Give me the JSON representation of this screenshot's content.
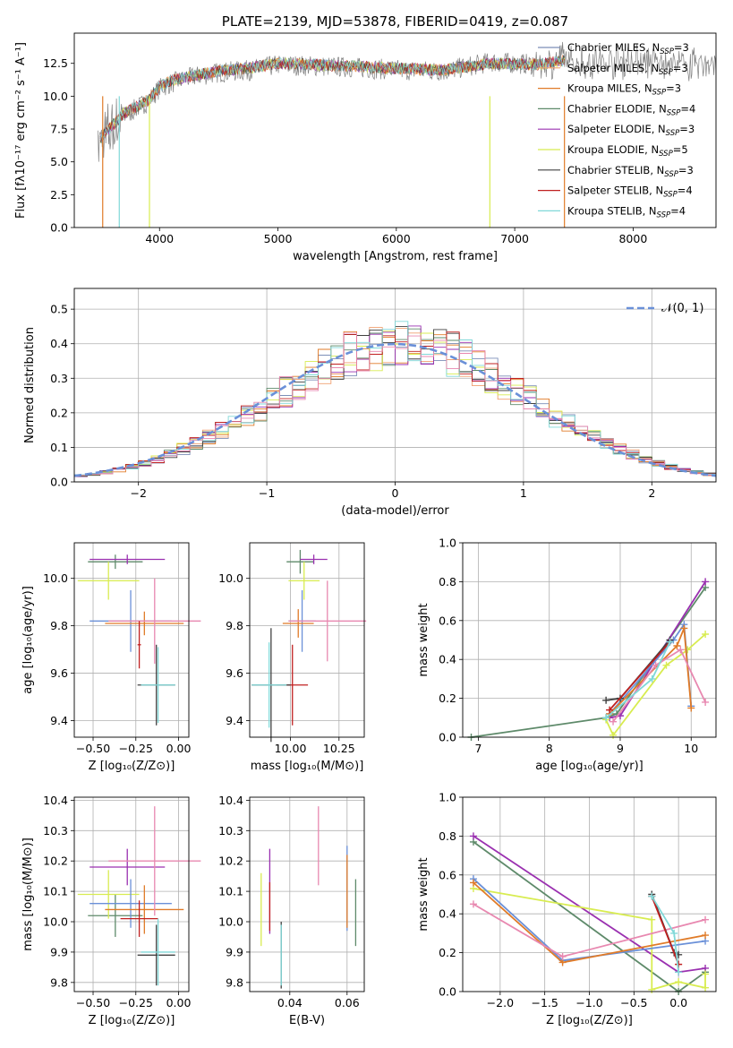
{
  "colors": {
    "chabrier_miles": "#7c8eb8",
    "salpeter_miles": "#f0a070",
    "kroupa_miles": "#e07b28",
    "chabrier_elodie": "#5e8a6a",
    "salpeter_elodie": "#9a30b0",
    "kroupa_elodie": "#d8ec50",
    "chabrier_stelib": "#404040",
    "salpeter_stelib": "#c02020",
    "kroupa_stelib": "#80d8d8",
    "pink": "#e888b0",
    "blue": "#6a90d8",
    "grid": "#b0b0b0"
  },
  "chart_data": [
    {
      "id": "spectrum",
      "type": "line",
      "title": "PLATE=2139, MJD=53878, FIBERID=0419, z=0.087",
      "xlabel": "wavelength [Angstrom, rest frame]",
      "ylabel": "Flux [fλ10⁻¹⁷ erg cm⁻² s⁻¹ A⁻¹]",
      "xlim": [
        3280,
        8700
      ],
      "ylim": [
        0,
        14.8
      ],
      "xticks": [
        "4000",
        "5000",
        "6000",
        "7000",
        "8000"
      ],
      "yticks": [
        "0.0",
        "2.5",
        "5.0",
        "7.5",
        "10.0",
        "12.5"
      ],
      "legend_position": "right",
      "legend": [
        {
          "name": "Chabrier MILES, N",
          "sub": "SSP",
          "n": "=3",
          "color": "#7c8eb8"
        },
        {
          "name": "Salpeter MILES, N",
          "sub": "SSP",
          "n": "=3",
          "color": "#f0a070"
        },
        {
          "name": "Kroupa MILES, N",
          "sub": "SSP",
          "n": "=3",
          "color": "#e07b28"
        },
        {
          "name": "Chabrier ELODIE, N",
          "sub": "SSP",
          "n": "=4",
          "color": "#5e8a6a"
        },
        {
          "name": "Salpeter ELODIE, N",
          "sub": "SSP",
          "n": "=3",
          "color": "#9a30b0"
        },
        {
          "name": "Kroupa ELODIE, N",
          "sub": "SSP",
          "n": "=5",
          "color": "#d8ec50"
        },
        {
          "name": "Chabrier STELIB, N",
          "sub": "SSP",
          "n": "=3",
          "color": "#404040"
        },
        {
          "name": "Salpeter STELIB, N",
          "sub": "SSP",
          "n": "=4",
          "color": "#c02020"
        },
        {
          "name": "Kroupa STELIB, N",
          "sub": "SSP",
          "n": "=4",
          "color": "#80d8d8"
        }
      ],
      "data_trend": {
        "x": [
          3500,
          3700,
          3900,
          4000,
          4100,
          4300,
          4500,
          4800,
          5000,
          5300,
          5600,
          6000,
          6400,
          6800,
          7200,
          7400,
          7600,
          8000,
          8400,
          8700
        ],
        "y": [
          6.5,
          8.5,
          9.6,
          10.6,
          11.0,
          11.5,
          11.8,
          12.0,
          12.4,
          12.3,
          12.2,
          12.0,
          11.9,
          12.6,
          12.4,
          12.8,
          12.5,
          12.7,
          12.4,
          12.5
        ]
      },
      "model_trend": {
        "x": [
          3500,
          3700,
          3900,
          4000,
          4100,
          4300,
          4500,
          4800,
          5000,
          5300,
          5600,
          6000,
          6400,
          6800,
          7200,
          7400
        ],
        "y": [
          6.8,
          8.7,
          9.7,
          10.7,
          11.2,
          11.6,
          11.9,
          12.2,
          12.5,
          12.4,
          12.3,
          12.1,
          12.0,
          12.5,
          12.4,
          12.7
        ]
      }
    },
    {
      "id": "residuals",
      "type": "histogram",
      "xlabel": "(data-model)/error",
      "ylabel": "Normed distribution",
      "xlim": [
        -2.5,
        2.5
      ],
      "ylim": [
        0,
        0.56
      ],
      "xticks": [
        "−2",
        "−1",
        "0",
        "1",
        "2"
      ],
      "yticks": [
        "0.0",
        "0.1",
        "0.2",
        "0.3",
        "0.4",
        "0.5"
      ],
      "legend_position": "top-right",
      "legend": [
        {
          "name": "𝒩(0, 1)",
          "color": "#6a90d8"
        }
      ],
      "bin_width": 0.1,
      "bin_start": -2.5,
      "reference_values": [
        0.018,
        0.022,
        0.028,
        0.035,
        0.044,
        0.054,
        0.066,
        0.079,
        0.095,
        0.113,
        0.13,
        0.15,
        0.17,
        0.19,
        0.21,
        0.24,
        0.26,
        0.28,
        0.31,
        0.33,
        0.35,
        0.37,
        0.38,
        0.39,
        0.4,
        0.4,
        0.4,
        0.39,
        0.38,
        0.37,
        0.35,
        0.33,
        0.31,
        0.28,
        0.26,
        0.24,
        0.21,
        0.19,
        0.17,
        0.15,
        0.13,
        0.113,
        0.095,
        0.079,
        0.066,
        0.054,
        0.044,
        0.035,
        0.028,
        0.022
      ]
    },
    {
      "id": "age-vs-z",
      "type": "errorbar",
      "xlabel": "Z [log₁₀(Z/Z⊙)]",
      "ylabel": "age  [log₁₀(age/yr)]",
      "xlim": [
        -0.61,
        0.06
      ],
      "ylim": [
        9.33,
        10.15
      ],
      "xticks": [
        "−0.50",
        "−0.25",
        "0.00"
      ],
      "yticks": [
        "9.4",
        "9.6",
        "9.8",
        "10.0"
      ],
      "points": [
        {
          "x": -0.37,
          "y": 10.07,
          "xerr": 0.16,
          "yerr": 0.03,
          "color": "#5e8a6a"
        },
        {
          "x": -0.3,
          "y": 10.08,
          "xerr": 0.22,
          "yerr": 0.02,
          "color": "#9a30b0"
        },
        {
          "x": -0.41,
          "y": 9.99,
          "xerr": 0.18,
          "yerr": 0.08,
          "color": "#d8ec50"
        },
        {
          "x": -0.28,
          "y": 9.82,
          "xerr": 0.24,
          "yerr": 0.13,
          "color": "#6a90d8"
        },
        {
          "x": -0.2,
          "y": 9.81,
          "xerr": 0.23,
          "yerr": 0.05,
          "color": "#e07b28"
        },
        {
          "x": -0.14,
          "y": 9.82,
          "xerr": 0.27,
          "yerr": 0.18,
          "color": "#e888b0"
        },
        {
          "x": -0.23,
          "y": 9.72,
          "xerr": 0.01,
          "yerr": 0.1,
          "color": "#c02020"
        },
        {
          "x": -0.13,
          "y": 9.55,
          "xerr": 0.11,
          "yerr": 0.17,
          "color": "#404040"
        },
        {
          "x": -0.12,
          "y": 9.55,
          "xerr": 0.1,
          "yerr": 0.16,
          "color": "#80d8d8"
        }
      ]
    },
    {
      "id": "age-vs-mass",
      "type": "errorbar",
      "xlabel": "mass [log₁₀(M/M⊙)]",
      "ylabel": "",
      "xlim": [
        9.79,
        10.38
      ],
      "ylim": [
        9.33,
        10.15
      ],
      "xticks": [
        "10.00",
        "10.25"
      ],
      "yticks": [
        "9.4",
        "9.6",
        "9.8",
        "10.0"
      ],
      "points": [
        {
          "x": 10.05,
          "y": 10.07,
          "xerr": 0.07,
          "yerr": 0.05,
          "color": "#5e8a6a"
        },
        {
          "x": 10.12,
          "y": 10.08,
          "xerr": 0.07,
          "yerr": 0.02,
          "color": "#9a30b0"
        },
        {
          "x": 10.07,
          "y": 9.99,
          "xerr": 0.08,
          "yerr": 0.08,
          "color": "#d8ec50"
        },
        {
          "x": 10.06,
          "y": 9.82,
          "xerr": 0.07,
          "yerr": 0.13,
          "color": "#6a90d8"
        },
        {
          "x": 10.04,
          "y": 9.81,
          "xerr": 0.08,
          "yerr": 0.06,
          "color": "#e07b28"
        },
        {
          "x": 10.19,
          "y": 9.82,
          "xerr": 0.2,
          "yerr": 0.17,
          "color": "#e888b0"
        },
        {
          "x": 10.01,
          "y": 9.55,
          "xerr": 0.08,
          "yerr": 0.17,
          "color": "#c02020"
        },
        {
          "x": 9.9,
          "y": 9.55,
          "xerr": 0.1,
          "yerr": 0.24,
          "color": "#404040"
        },
        {
          "x": 9.89,
          "y": 9.55,
          "xerr": 0.09,
          "yerr": 0.18,
          "color": "#80d8d8"
        }
      ]
    },
    {
      "id": "mass-weight-vs-age",
      "type": "line",
      "xlabel": "age  [log₁₀(age/yr)]",
      "ylabel": "mass weight",
      "xlim": [
        6.78,
        10.35
      ],
      "ylim": [
        0,
        1
      ],
      "xticks": [
        "7",
        "8",
        "9",
        "10"
      ],
      "yticks": [
        "0.0",
        "0.2",
        "0.4",
        "0.6",
        "0.8",
        "1.0"
      ],
      "series": [
        {
          "color": "#5e8a6a",
          "x": [
            6.9,
            8.8,
            8.95,
            10.2
          ],
          "y": [
            0.0,
            0.1,
            0.12,
            0.77
          ]
        },
        {
          "color": "#9a30b0",
          "x": [
            8.85,
            9.0,
            10.2
          ],
          "y": [
            0.1,
            0.11,
            0.8
          ]
        },
        {
          "color": "#d8ec50",
          "x": [
            8.8,
            8.9,
            9.65,
            9.95,
            10.2
          ],
          "y": [
            0.09,
            0.01,
            0.37,
            0.45,
            0.53
          ]
        },
        {
          "color": "#6a90d8",
          "x": [
            8.85,
            9.75,
            9.9,
            10.0
          ],
          "y": [
            0.12,
            0.5,
            0.58,
            0.16
          ]
        },
        {
          "color": "#e07b28",
          "x": [
            8.85,
            9.8,
            9.9,
            10.0
          ],
          "y": [
            0.12,
            0.47,
            0.56,
            0.15
          ]
        },
        {
          "color": "#e888b0",
          "x": [
            8.9,
            9.5,
            9.85,
            10.2
          ],
          "y": [
            0.08,
            0.37,
            0.45,
            0.18
          ]
        },
        {
          "color": "#404040",
          "x": [
            8.8,
            9.0,
            9.7
          ],
          "y": [
            0.19,
            0.2,
            0.5
          ]
        },
        {
          "color": "#c02020",
          "x": [
            8.85,
            9.7
          ],
          "y": [
            0.14,
            0.49
          ]
        },
        {
          "color": "#80d8d8",
          "x": [
            8.8,
            9.45,
            9.7
          ],
          "y": [
            0.1,
            0.3,
            0.49
          ]
        }
      ]
    },
    {
      "id": "mass-vs-z",
      "type": "errorbar",
      "xlabel": "Z [log₁₀(Z/Z⊙)]",
      "ylabel": "mass [log₁₀(M/M⊙)]",
      "xlim": [
        -0.61,
        0.06
      ],
      "ylim": [
        9.77,
        10.41
      ],
      "xticks": [
        "−0.50",
        "−0.25",
        "0.00"
      ],
      "yticks": [
        "9.8",
        "9.9",
        "10.0",
        "10.1",
        "10.2",
        "10.3",
        "10.4"
      ],
      "points": [
        {
          "x": -0.37,
          "y": 10.02,
          "xerr": 0.16,
          "yerr": 0.07,
          "color": "#5e8a6a"
        },
        {
          "x": -0.3,
          "y": 10.18,
          "xerr": 0.22,
          "yerr": 0.06,
          "color": "#9a30b0"
        },
        {
          "x": -0.41,
          "y": 10.09,
          "xerr": 0.18,
          "yerr": 0.08,
          "color": "#d8ec50"
        },
        {
          "x": -0.28,
          "y": 10.06,
          "xerr": 0.24,
          "yerr": 0.08,
          "color": "#6a90d8"
        },
        {
          "x": -0.2,
          "y": 10.04,
          "xerr": 0.23,
          "yerr": 0.08,
          "color": "#e07b28"
        },
        {
          "x": -0.14,
          "y": 10.2,
          "xerr": 0.27,
          "yerr": 0.18,
          "color": "#e888b0"
        },
        {
          "x": -0.23,
          "y": 10.01,
          "xerr": 0.11,
          "yerr": 0.06,
          "color": "#c02020"
        },
        {
          "x": -0.13,
          "y": 9.89,
          "xerr": 0.11,
          "yerr": 0.1,
          "color": "#404040"
        },
        {
          "x": -0.12,
          "y": 9.9,
          "xerr": 0.1,
          "yerr": 0.11,
          "color": "#80d8d8"
        }
      ]
    },
    {
      "id": "mass-vs-ebv",
      "type": "errorbar",
      "xlabel": "E(B-V)",
      "ylabel": "",
      "xlim": [
        0.026,
        0.066
      ],
      "ylim": [
        9.77,
        10.41
      ],
      "xticks": [
        "0.04",
        "0.06"
      ],
      "yticks": [
        "9.8",
        "9.9",
        "10.0",
        "10.1",
        "10.2",
        "10.3",
        "10.4"
      ],
      "points": [
        {
          "x": 0.063,
          "y": 10.03,
          "xerr": 0,
          "yerr": 0.11,
          "color": "#5e8a6a"
        },
        {
          "x": 0.033,
          "y": 10.1,
          "xerr": 0,
          "yerr": 0.14,
          "color": "#9a30b0"
        },
        {
          "x": 0.03,
          "y": 10.04,
          "xerr": 0,
          "yerr": 0.12,
          "color": "#d8ec50"
        },
        {
          "x": 0.06,
          "y": 10.11,
          "xerr": 0,
          "yerr": 0.14,
          "color": "#6a90d8"
        },
        {
          "x": 0.06,
          "y": 10.1,
          "xerr": 0,
          "yerr": 0.12,
          "color": "#e07b28"
        },
        {
          "x": 0.05,
          "y": 10.25,
          "xerr": 0,
          "yerr": 0.13,
          "color": "#e888b0"
        },
        {
          "x": 0.033,
          "y": 10.05,
          "xerr": 0,
          "yerr": 0.08,
          "color": "#c02020"
        },
        {
          "x": 0.037,
          "y": 9.89,
          "xerr": 0,
          "yerr": 0.11,
          "color": "#404040"
        },
        {
          "x": 0.037,
          "y": 9.89,
          "xerr": 0,
          "yerr": 0.1,
          "color": "#80d8d8"
        }
      ]
    },
    {
      "id": "mass-weight-vs-z",
      "type": "line",
      "xlabel": "Z [log₁₀(Z/Z⊙)]",
      "ylabel": "mass weight",
      "xlim": [
        -2.42,
        0.42
      ],
      "ylim": [
        0,
        1
      ],
      "xticks": [
        "−2.0",
        "−1.5",
        "−1.0",
        "−0.5",
        "0.0"
      ],
      "yticks": [
        "0.0",
        "0.2",
        "0.4",
        "0.6",
        "0.8",
        "1.0"
      ],
      "series": [
        {
          "color": "#5e8a6a",
          "x": [
            -2.3,
            0.0,
            0.3
          ],
          "y": [
            0.77,
            0.0,
            0.1
          ]
        },
        {
          "color": "#9a30b0",
          "x": [
            -2.3,
            0.0,
            0.3
          ],
          "y": [
            0.8,
            0.1,
            0.12
          ]
        },
        {
          "color": "#d8ec50",
          "x": [
            -2.3,
            -0.3,
            -0.3,
            0.0,
            0.3,
            0.3
          ],
          "y": [
            0.53,
            0.37,
            0.01,
            0.05,
            0.02,
            0.09
          ]
        },
        {
          "color": "#6a90d8",
          "x": [
            -2.3,
            -1.3,
            0.3
          ],
          "y": [
            0.58,
            0.16,
            0.26
          ]
        },
        {
          "color": "#e07b28",
          "x": [
            -2.3,
            -1.3,
            0.3
          ],
          "y": [
            0.56,
            0.15,
            0.29
          ]
        },
        {
          "color": "#e888b0",
          "x": [
            -2.3,
            -1.3,
            0.3
          ],
          "y": [
            0.45,
            0.18,
            0.37
          ]
        },
        {
          "color": "#404040",
          "x": [
            -0.3,
            -0.05,
            0.0
          ],
          "y": [
            0.5,
            0.2,
            0.19
          ]
        },
        {
          "color": "#c02020",
          "x": [
            -0.3,
            0.0
          ],
          "y": [
            0.49,
            0.14
          ]
        },
        {
          "color": "#80d8d8",
          "x": [
            -0.3,
            -0.05,
            0.0
          ],
          "y": [
            0.49,
            0.3,
            0.1
          ]
        }
      ]
    }
  ]
}
